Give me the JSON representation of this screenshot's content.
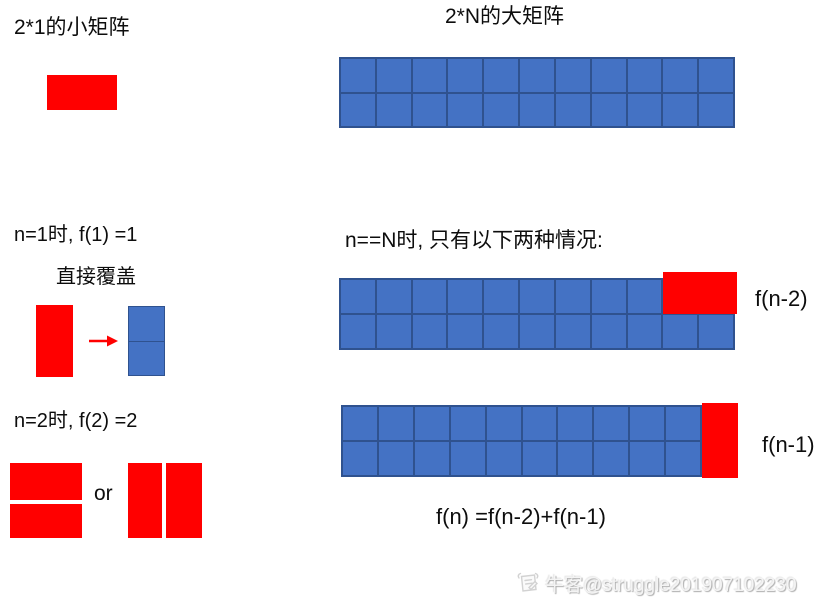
{
  "colors": {
    "blue_fill": "#4472C4",
    "blue_border": "#2F528F",
    "red": "#FF0000",
    "text": "#0d0d0d",
    "watermark_text": "#F4F4F4",
    "watermark_shadow": "#ABABAB"
  },
  "top_left": {
    "title": "2*1的小矩阵"
  },
  "top_right": {
    "title": "2*N的大矩阵",
    "matrix": {
      "rows": 2,
      "cols": 11
    }
  },
  "n1_section": {
    "statement": "n=1时, f(1) =1",
    "caption": "直接覆盖",
    "target_matrix": {
      "rows": 2,
      "cols": 1
    }
  },
  "n2_section": {
    "statement": "n=2时, f(2) =2",
    "or_label": "or"
  },
  "case_section": {
    "statement": "n==N时, 只有以下两种情况:",
    "case1": {
      "matrix": {
        "rows": 2,
        "cols": 11
      },
      "label": "f(n-2)"
    },
    "case2": {
      "matrix": {
        "rows": 2,
        "cols": 10
      },
      "label": "f(n-1)"
    },
    "formula": "f(n) =f(n-2)+f(n-1)"
  },
  "watermark": {
    "text": "牛客@struggle201907102230"
  }
}
